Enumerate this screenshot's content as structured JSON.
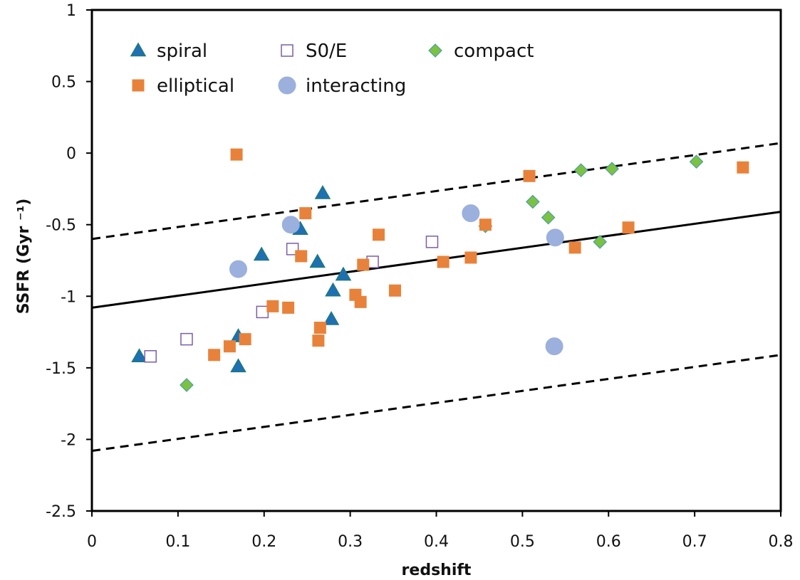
{
  "chart_data": {
    "type": "scatter",
    "xlabel": "redshift",
    "ylabel": "SSFR (Gyr ⁻¹)",
    "xlim": [
      0,
      0.8
    ],
    "ylim": [
      -2.5,
      1
    ],
    "xticks": [
      0,
      0.1,
      0.2,
      0.3,
      0.4,
      0.5,
      0.6,
      0.7,
      0.8
    ],
    "yticks": [
      1,
      0.5,
      0,
      -0.5,
      -1,
      -1.5,
      -2,
      -2.5
    ],
    "xtick_labels": [
      "0",
      "0.1",
      "0.2",
      "0.3",
      "0.4",
      "0.5",
      "0.6",
      "0.7",
      "0.8"
    ],
    "ytick_labels": [
      "1",
      "0.5",
      "0",
      "-0.5",
      "-1",
      "-1.5",
      "-2",
      "-2.5"
    ],
    "grid": false,
    "legend_position": "top-left",
    "series": [
      {
        "name": "spiral",
        "marker": "triangle",
        "color": "#1f6fb5",
        "stroke": "#1b7a7a",
        "points": [
          [
            0.055,
            -1.42
          ],
          [
            0.17,
            -1.28
          ],
          [
            0.17,
            -1.49
          ],
          [
            0.197,
            -0.71
          ],
          [
            0.242,
            -0.53
          ],
          [
            0.262,
            -0.76
          ],
          [
            0.268,
            -0.28
          ],
          [
            0.28,
            -0.96
          ],
          [
            0.278,
            -1.16
          ],
          [
            0.292,
            -0.85
          ]
        ]
      },
      {
        "name": "S0/E",
        "marker": "open-square",
        "color": "#ffffff",
        "stroke": "#7b5ea7",
        "points": [
          [
            0.068,
            -1.42
          ],
          [
            0.11,
            -1.3
          ],
          [
            0.198,
            -1.11
          ],
          [
            0.233,
            -0.67
          ],
          [
            0.326,
            -0.76
          ],
          [
            0.395,
            -0.62
          ]
        ]
      },
      {
        "name": "compact",
        "marker": "diamond",
        "color": "#7cc242",
        "stroke": "#4aa0a0",
        "points": [
          [
            0.11,
            -1.62
          ],
          [
            0.457,
            -0.51
          ],
          [
            0.512,
            -0.34
          ],
          [
            0.53,
            -0.45
          ],
          [
            0.568,
            -0.12
          ],
          [
            0.59,
            -0.62
          ],
          [
            0.604,
            -0.11
          ],
          [
            0.702,
            -0.06
          ]
        ]
      },
      {
        "name": "elliptical",
        "marker": "square",
        "color": "#e8823a",
        "stroke": "#e8823a",
        "points": [
          [
            0.142,
            -1.41
          ],
          [
            0.16,
            -1.35
          ],
          [
            0.168,
            -0.01
          ],
          [
            0.178,
            -1.3
          ],
          [
            0.21,
            -1.07
          ],
          [
            0.228,
            -1.08
          ],
          [
            0.243,
            -0.72
          ],
          [
            0.248,
            -0.42
          ],
          [
            0.263,
            -1.31
          ],
          [
            0.265,
            -1.22
          ],
          [
            0.306,
            -0.99
          ],
          [
            0.312,
            -1.04
          ],
          [
            0.315,
            -0.78
          ],
          [
            0.333,
            -0.57
          ],
          [
            0.352,
            -0.96
          ],
          [
            0.408,
            -0.76
          ],
          [
            0.44,
            -0.73
          ],
          [
            0.457,
            -0.5
          ],
          [
            0.508,
            -0.16
          ],
          [
            0.561,
            -0.66
          ],
          [
            0.623,
            -0.52
          ],
          [
            0.756,
            -0.1
          ]
        ]
      },
      {
        "name": "interacting",
        "marker": "circle",
        "color": "#9bb0dc",
        "stroke": "#9bb0dc",
        "points": [
          [
            0.17,
            -0.81
          ],
          [
            0.231,
            -0.5
          ],
          [
            0.44,
            -0.42
          ],
          [
            0.537,
            -1.35
          ],
          [
            0.538,
            -0.59
          ]
        ]
      }
    ],
    "lines": [
      {
        "style": "solid",
        "from": [
          0,
          -1.08
        ],
        "to": [
          0.8,
          -0.41
        ]
      },
      {
        "style": "dashed",
        "from": [
          0,
          -0.6
        ],
        "to": [
          0.8,
          0.07
        ]
      },
      {
        "style": "dashed",
        "from": [
          0,
          -2.08
        ],
        "to": [
          0.8,
          -1.41
        ]
      }
    ]
  }
}
